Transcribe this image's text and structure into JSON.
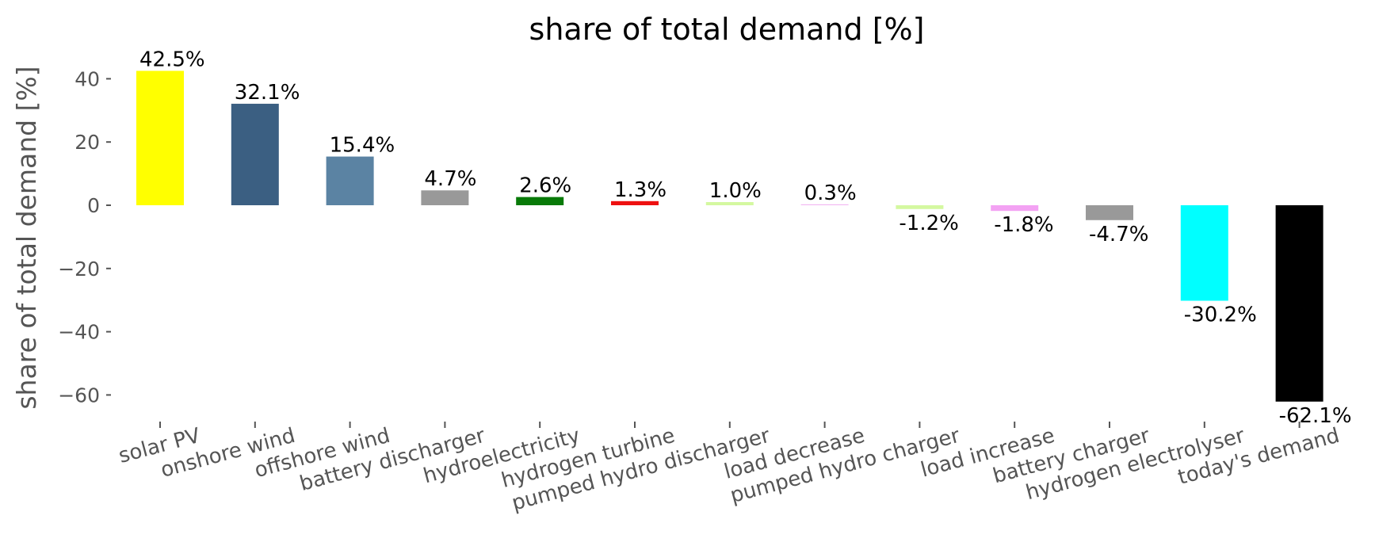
{
  "chart_data": {
    "type": "bar",
    "title": "share of total demand [%]",
    "ylabel": "share of total demand [%]",
    "xlabel": "",
    "ylim": [
      -68,
      50
    ],
    "yticks": [
      40,
      20,
      0,
      -20,
      -40,
      -60
    ],
    "grid": false,
    "legend": "none",
    "categories": [
      "solar PV",
      "onshore wind",
      "offshore wind",
      "battery discharger",
      "hydroelectricity",
      "hydrogen turbine",
      "pumped hydro discharger",
      "load decrease",
      "pumped hydro charger",
      "load increase",
      "battery charger",
      "hydrogen electrolyser",
      "today's demand"
    ],
    "values": [
      42.5,
      32.1,
      15.4,
      4.7,
      2.6,
      1.3,
      1.0,
      0.3,
      -1.2,
      -1.8,
      -4.7,
      -30.2,
      -62.1
    ],
    "labels": [
      "42.5%",
      "32.1%",
      "15.4%",
      "4.7%",
      "2.6%",
      "1.3%",
      "1.0%",
      "0.3%",
      "-1.2%",
      "-1.8%",
      "-4.7%",
      "-30.2%",
      "-62.1%"
    ],
    "colors": [
      "#ffff00",
      "#3b5f82",
      "#5b83a3",
      "#999999",
      "#087a08",
      "#ee1010",
      "#d4f8a0",
      "#f3b9f3",
      "#d4f8a0",
      "#f3a2f3",
      "#999999",
      "#00ffff",
      "#000000"
    ]
  }
}
